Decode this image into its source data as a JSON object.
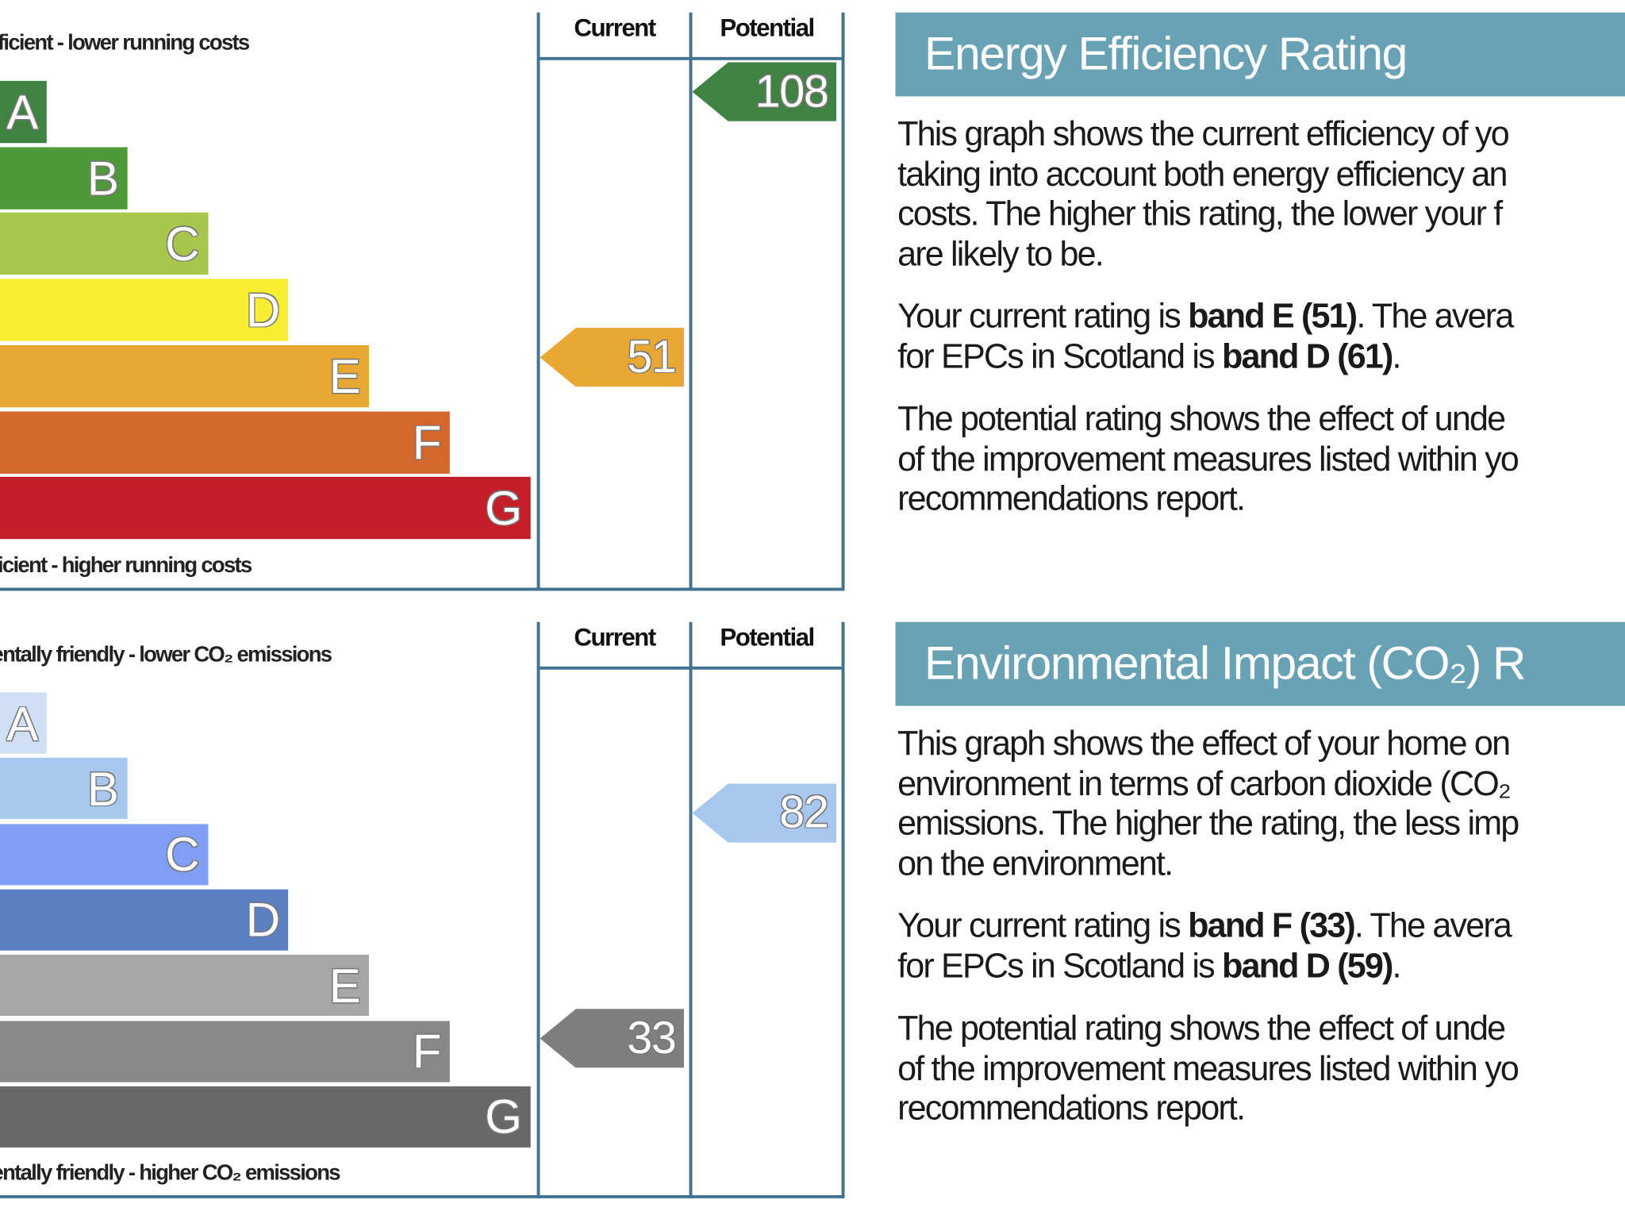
{
  "colors": {
    "frame": "#3f7391",
    "banner": "#6aa2b5"
  },
  "chart_data": [
    {
      "type": "bar",
      "title": "Energy Efficiency Rating",
      "top_caption": "fficient - lower running costs",
      "bottom_caption": "ficient - higher running costs",
      "column_headers": [
        "Current",
        "Potential"
      ],
      "categories": [
        "A",
        "B",
        "C",
        "D",
        "E",
        "F",
        "G"
      ],
      "band_colors": [
        "#3e8341",
        "#4e9a3a",
        "#a6c74a",
        "#f7ee34",
        "#e8a832",
        "#d4672c",
        "#c41f28"
      ],
      "current": {
        "value": 51,
        "band": "E",
        "color": "#e8a832"
      },
      "potential": {
        "value": 108,
        "band": "A",
        "color": "#3e8341"
      }
    },
    {
      "type": "bar",
      "title": "Environmental Impact (CO₂) R",
      "top_caption": "entally friendly - lower CO₂ emissions",
      "bottom_caption": "entally friendly - higher CO₂ emissions",
      "column_headers": [
        "Current",
        "Potential"
      ],
      "categories": [
        "A",
        "B",
        "C",
        "D",
        "E",
        "F",
        "G"
      ],
      "band_colors": [
        "#cfe0f5",
        "#a8c7ef",
        "#7e9ff5",
        "#5b7fc3",
        "#a6a6a6",
        "#888888",
        "#686868"
      ],
      "current": {
        "value": 33,
        "band": "F",
        "color": "#7f7f7f"
      },
      "potential": {
        "value": 82,
        "band": "B",
        "color": "#a8c7ef"
      }
    }
  ],
  "panels": [
    {
      "title": "Energy Efficiency Rating",
      "paragraphs": [
        [
          [
            {
              "t": "This graph shows the current efficiency of yo"
            }
          ],
          [
            {
              "t": "taking into account both energy efficiency an"
            }
          ],
          [
            {
              "t": "costs. The higher this rating, the lower your f"
            }
          ],
          [
            {
              "t": "are likely to be."
            }
          ]
        ],
        [
          [
            {
              "t": "Your current rating is "
            },
            {
              "t": "band E (51)",
              "b": true
            },
            {
              "t": ". The avera"
            }
          ],
          [
            {
              "t": "for EPCs in Scotland is "
            },
            {
              "t": "band D (61)",
              "b": true
            },
            {
              "t": "."
            }
          ]
        ],
        [
          [
            {
              "t": "The potential rating shows the effect of unde"
            }
          ],
          [
            {
              "t": "of the improvement measures listed within yo"
            }
          ],
          [
            {
              "t": "recommendations report."
            }
          ]
        ]
      ]
    },
    {
      "title": "Environmental Impact (CO₂) R",
      "paragraphs": [
        [
          [
            {
              "t": "This graph shows the effect of your home on"
            }
          ],
          [
            {
              "t": "environment in terms of carbon dioxide (CO₂"
            }
          ],
          [
            {
              "t": "emissions. The higher the rating, the less imp"
            }
          ],
          [
            {
              "t": "on the environment."
            }
          ]
        ],
        [
          [
            {
              "t": "Your current rating is "
            },
            {
              "t": "band F (33)",
              "b": true
            },
            {
              "t": ". The avera"
            }
          ],
          [
            {
              "t": "for EPCs in Scotland is "
            },
            {
              "t": "band D (59)",
              "b": true
            },
            {
              "t": "."
            }
          ]
        ],
        [
          [
            {
              "t": "The potential rating shows the effect of unde"
            }
          ],
          [
            {
              "t": "of the improvement measures listed within yo"
            }
          ],
          [
            {
              "t": "recommendations report."
            }
          ]
        ]
      ]
    }
  ]
}
